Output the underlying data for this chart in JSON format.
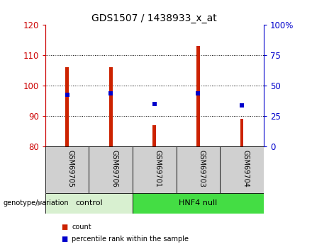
{
  "title": "GDS1507 / 1438933_x_at",
  "samples": [
    "GSM69705",
    "GSM69706",
    "GSM69701",
    "GSM69703",
    "GSM69704"
  ],
  "bar_bottoms": [
    80,
    80,
    80,
    80,
    80
  ],
  "bar_tops": [
    106,
    106,
    87,
    113,
    89
  ],
  "percentile_values": [
    97,
    97.5,
    94,
    97.5,
    93.5
  ],
  "bar_color": "#cc2200",
  "marker_color": "#0000cc",
  "ylim_left": [
    80,
    120
  ],
  "ylim_right": [
    0,
    100
  ],
  "left_ticks": [
    80,
    90,
    100,
    110,
    120
  ],
  "right_ticks": [
    0,
    25,
    50,
    75,
    100
  ],
  "right_tick_labels": [
    "0",
    "25",
    "50",
    "75",
    "100%"
  ],
  "grid_ticks": [
    90,
    100,
    110
  ],
  "groups": [
    {
      "label": "control",
      "indices": [
        0,
        1
      ],
      "color": "#d8f0d0"
    },
    {
      "label": "HNF4 null",
      "indices": [
        2,
        3,
        4
      ],
      "color": "#44dd44"
    }
  ],
  "group_label": "genotype/variation",
  "legend_count_label": "count",
  "legend_pct_label": "percentile rank within the sample",
  "tick_bg_color": "#d0d0d0",
  "left_axis_color": "#cc0000",
  "right_axis_color": "#0000cc",
  "title_fontsize": 10,
  "tick_fontsize": 8.5,
  "bar_width": 0.08
}
